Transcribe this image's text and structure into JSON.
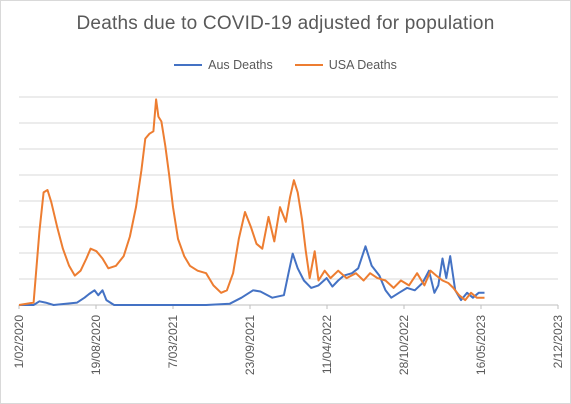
{
  "chart_data": {
    "type": "line",
    "title": "Deaths due to COVID-19 adjusted for population",
    "xlabel": "",
    "ylabel": "",
    "x_ticks": [
      "1/02/2020",
      "19/08/2020",
      "7/03/2021",
      "23/09/2021",
      "11/04/2022",
      "28/10/2022",
      "16/05/2023",
      "2/12/2023"
    ],
    "xlim": [
      "2020-02-01",
      "2023-12-02"
    ],
    "y_gridlines": 8,
    "grid": "horizontal",
    "legend_position": "top",
    "series": [
      {
        "name": "Aus Deaths",
        "color": "#4472c4",
        "points": [
          [
            "2020-02-01",
            0.0
          ],
          [
            "2020-03-10",
            0.0
          ],
          [
            "2020-03-25",
            0.15
          ],
          [
            "2020-04-10",
            0.1
          ],
          [
            "2020-05-01",
            0.0
          ],
          [
            "2020-07-01",
            0.1
          ],
          [
            "2020-07-20",
            0.3
          ],
          [
            "2020-08-01",
            0.45
          ],
          [
            "2020-08-15",
            0.6
          ],
          [
            "2020-08-25",
            0.4
          ],
          [
            "2020-09-05",
            0.6
          ],
          [
            "2020-09-15",
            0.2
          ],
          [
            "2020-10-05",
            0.0
          ],
          [
            "2021-06-01",
            0.0
          ],
          [
            "2021-08-01",
            0.05
          ],
          [
            "2021-09-01",
            0.3
          ],
          [
            "2021-10-01",
            0.6
          ],
          [
            "2021-10-20",
            0.55
          ],
          [
            "2021-11-20",
            0.3
          ],
          [
            "2021-12-20",
            0.4
          ],
          [
            "2022-01-01",
            1.3
          ],
          [
            "2022-01-12",
            2.1
          ],
          [
            "2022-01-25",
            1.5
          ],
          [
            "2022-02-10",
            1.0
          ],
          [
            "2022-03-01",
            0.7
          ],
          [
            "2022-03-20",
            0.8
          ],
          [
            "2022-04-10",
            1.1
          ],
          [
            "2022-04-25",
            0.75
          ],
          [
            "2022-05-10",
            1.0
          ],
          [
            "2022-05-25",
            1.2
          ],
          [
            "2022-06-15",
            1.3
          ],
          [
            "2022-07-01",
            1.5
          ],
          [
            "2022-07-20",
            2.4
          ],
          [
            "2022-08-05",
            1.6
          ],
          [
            "2022-08-25",
            1.2
          ],
          [
            "2022-09-10",
            0.6
          ],
          [
            "2022-09-25",
            0.3
          ],
          [
            "2022-10-15",
            0.5
          ],
          [
            "2022-11-05",
            0.7
          ],
          [
            "2022-11-25",
            0.6
          ],
          [
            "2022-12-15",
            0.9
          ],
          [
            "2023-01-01",
            1.4
          ],
          [
            "2023-01-15",
            0.5
          ],
          [
            "2023-01-25",
            0.8
          ],
          [
            "2023-02-05",
            1.9
          ],
          [
            "2023-02-15",
            1.1
          ],
          [
            "2023-02-25",
            2.0
          ],
          [
            "2023-03-10",
            0.6
          ],
          [
            "2023-03-25",
            0.2
          ],
          [
            "2023-04-10",
            0.5
          ],
          [
            "2023-04-25",
            0.3
          ],
          [
            "2023-05-10",
            0.5
          ],
          [
            "2023-05-25",
            0.5
          ]
        ]
      },
      {
        "name": "USA Deaths",
        "color": "#ed7d31",
        "points": [
          [
            "2020-02-01",
            0.0
          ],
          [
            "2020-03-10",
            0.1
          ],
          [
            "2020-03-25",
            3.0
          ],
          [
            "2020-04-05",
            4.6
          ],
          [
            "2020-04-15",
            4.7
          ],
          [
            "2020-04-25",
            4.2
          ],
          [
            "2020-05-10",
            3.2
          ],
          [
            "2020-05-25",
            2.3
          ],
          [
            "2020-06-10",
            1.6
          ],
          [
            "2020-06-25",
            1.2
          ],
          [
            "2020-07-10",
            1.4
          ],
          [
            "2020-07-25",
            1.9
          ],
          [
            "2020-08-05",
            2.3
          ],
          [
            "2020-08-20",
            2.2
          ],
          [
            "2020-09-05",
            1.9
          ],
          [
            "2020-09-20",
            1.5
          ],
          [
            "2020-10-10",
            1.6
          ],
          [
            "2020-10-30",
            2.0
          ],
          [
            "2020-11-15",
            2.8
          ],
          [
            "2020-12-01",
            4.0
          ],
          [
            "2020-12-15",
            5.5
          ],
          [
            "2020-12-25",
            6.8
          ],
          [
            "2021-01-05",
            7.0
          ],
          [
            "2021-01-15",
            7.1
          ],
          [
            "2021-01-22",
            8.4
          ],
          [
            "2021-01-28",
            7.7
          ],
          [
            "2021-02-05",
            7.5
          ],
          [
            "2021-02-15",
            6.5
          ],
          [
            "2021-02-25",
            5.3
          ],
          [
            "2021-03-07",
            4.0
          ],
          [
            "2021-03-20",
            2.7
          ],
          [
            "2021-04-05",
            2.0
          ],
          [
            "2021-04-20",
            1.6
          ],
          [
            "2021-05-10",
            1.4
          ],
          [
            "2021-06-01",
            1.3
          ],
          [
            "2021-06-20",
            0.8
          ],
          [
            "2021-07-10",
            0.5
          ],
          [
            "2021-07-25",
            0.6
          ],
          [
            "2021-08-10",
            1.3
          ],
          [
            "2021-08-25",
            2.7
          ],
          [
            "2021-09-10",
            3.8
          ],
          [
            "2021-09-25",
            3.2
          ],
          [
            "2021-10-10",
            2.5
          ],
          [
            "2021-10-25",
            2.3
          ],
          [
            "2021-11-10",
            3.6
          ],
          [
            "2021-11-25",
            2.6
          ],
          [
            "2021-12-10",
            4.0
          ],
          [
            "2021-12-25",
            3.4
          ],
          [
            "2022-01-05",
            4.4
          ],
          [
            "2022-01-15",
            5.1
          ],
          [
            "2022-01-25",
            4.6
          ],
          [
            "2022-02-05",
            3.5
          ],
          [
            "2022-02-15",
            2.2
          ],
          [
            "2022-02-25",
            1.1
          ],
          [
            "2022-03-10",
            2.2
          ],
          [
            "2022-03-20",
            1.0
          ],
          [
            "2022-04-05",
            1.4
          ],
          [
            "2022-04-20",
            1.1
          ],
          [
            "2022-05-10",
            1.4
          ],
          [
            "2022-06-01",
            1.1
          ],
          [
            "2022-06-25",
            1.3
          ],
          [
            "2022-07-15",
            1.0
          ],
          [
            "2022-08-01",
            1.3
          ],
          [
            "2022-08-20",
            1.1
          ],
          [
            "2022-09-10",
            1.0
          ],
          [
            "2022-10-01",
            0.7
          ],
          [
            "2022-10-20",
            1.0
          ],
          [
            "2022-11-10",
            0.8
          ],
          [
            "2022-12-01",
            1.3
          ],
          [
            "2022-12-20",
            0.8
          ],
          [
            "2023-01-05",
            1.4
          ],
          [
            "2023-01-20",
            1.2
          ],
          [
            "2023-02-05",
            1.0
          ],
          [
            "2023-02-20",
            0.9
          ],
          [
            "2023-03-05",
            0.7
          ],
          [
            "2023-03-20",
            0.4
          ],
          [
            "2023-04-05",
            0.2
          ],
          [
            "2023-04-20",
            0.5
          ],
          [
            "2023-05-05",
            0.3
          ],
          [
            "2023-05-25",
            0.3
          ]
        ]
      }
    ]
  }
}
